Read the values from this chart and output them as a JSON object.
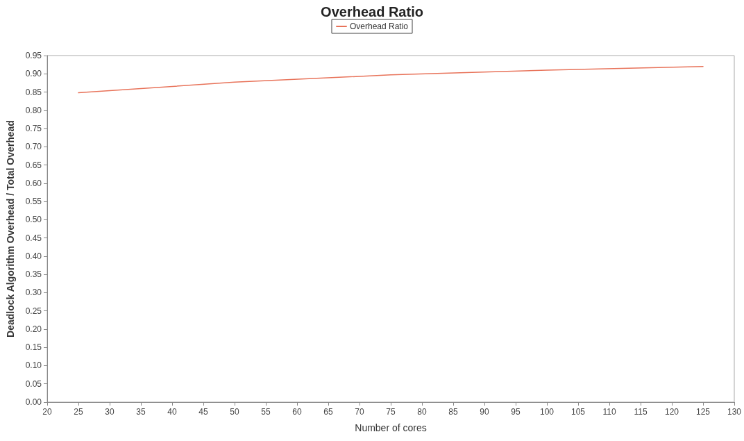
{
  "chart_data": {
    "type": "line",
    "title": "Overhead Ratio",
    "xlabel": "Number of cores",
    "ylabel": "Deadlock Algorithm Overhead / Total Overhead",
    "x": [
      25,
      50,
      75,
      100,
      125
    ],
    "series": [
      {
        "name": "Overhead Ratio",
        "color": "#e8735a",
        "values": [
          0.848,
          0.877,
          0.897,
          0.91,
          0.92
        ]
      }
    ],
    "xlim": [
      20,
      130
    ],
    "xticks": [
      20,
      25,
      30,
      35,
      40,
      45,
      50,
      55,
      60,
      65,
      70,
      75,
      80,
      85,
      90,
      95,
      100,
      105,
      110,
      115,
      120,
      125,
      130
    ],
    "ylim": [
      0,
      0.95
    ],
    "yticks": [
      {
        "value": 0,
        "label": "0.00"
      },
      0.05,
      {
        "value": 0.1,
        "label": "0.10"
      },
      0.15,
      {
        "value": 0.2,
        "label": "0.20"
      },
      0.25,
      {
        "value": 0.3,
        "label": "0.30"
      },
      0.35,
      {
        "value": 0.4,
        "label": "0.40"
      },
      0.45,
      {
        "value": 0.5,
        "label": "0.50"
      },
      0.55,
      {
        "value": 0.6,
        "label": "0.60"
      },
      0.65,
      {
        "value": 0.7,
        "label": "0.70"
      },
      0.75,
      {
        "value": 0.8,
        "label": "0.80"
      },
      0.85,
      {
        "value": 0.9,
        "label": "0.90"
      },
      0.95
    ],
    "grid": false,
    "legend": "top",
    "marker": "none",
    "line_style": "solid"
  }
}
